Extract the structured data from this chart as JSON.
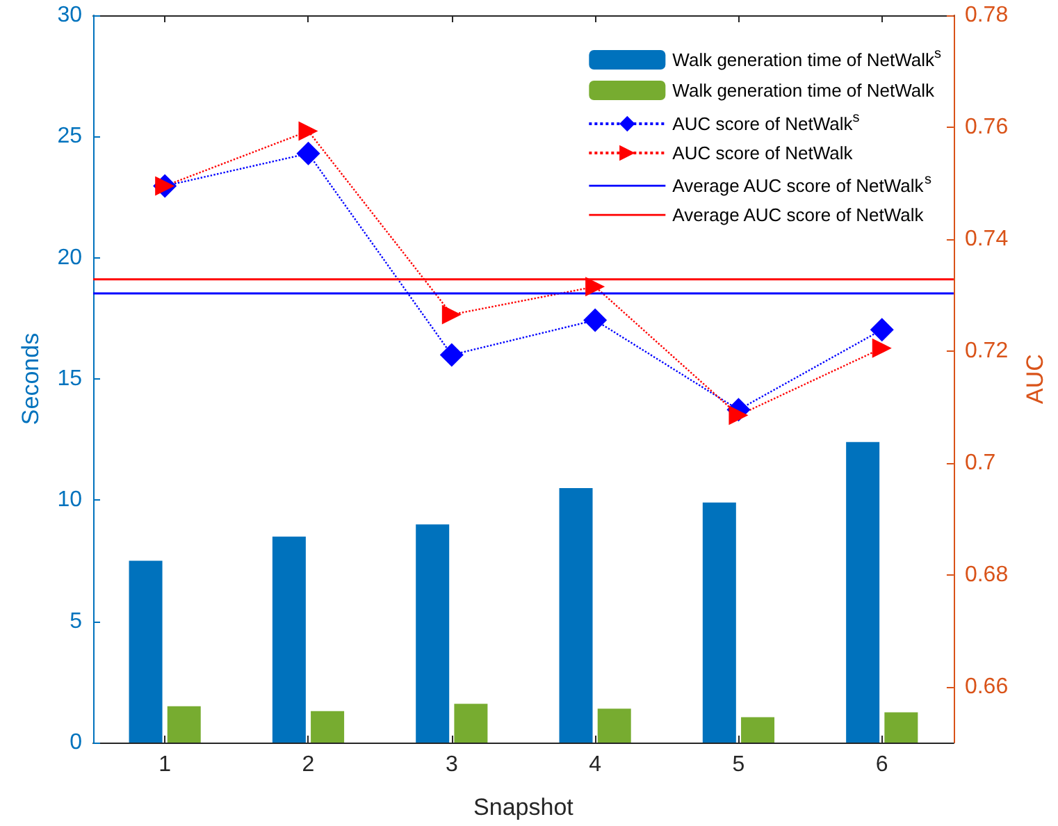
{
  "chart_data": {
    "type": "bar",
    "xlabel": "Snapshot",
    "ylabel": "Seconds",
    "y2label": "AUC",
    "categories": [
      "1",
      "2",
      "3",
      "4",
      "5",
      "6"
    ],
    "series": [
      {
        "name": "Walk generation time of NetWalk$^{s}$",
        "color": "#0072bd",
        "values": [
          7.5,
          8.5,
          9.0,
          10.5,
          9.9,
          12.4
        ]
      },
      {
        "name": "Walk generation time of NetWalk",
        "color": "#77ac30",
        "values": [
          1.5,
          1.3,
          1.6,
          1.4,
          1.05,
          1.25
        ]
      },
      {
        "name": "AUC score of NetWalk$^{s}$",
        "type": "line",
        "axis": "y2",
        "color": "#0000ff",
        "marker": "diamond",
        "line_style": "dotted",
        "values": [
          0.7495,
          0.7553,
          0.7193,
          0.7255,
          0.7095,
          0.7238
        ]
      },
      {
        "name": "AUC score of NetWalk",
        "type": "line",
        "axis": "y2",
        "color": "#ff0000",
        "marker": "triangle",
        "line_style": "dotted",
        "values": [
          0.7495,
          0.7593,
          0.7265,
          0.7315,
          0.7085,
          0.7205
        ]
      }
    ],
    "ref_lines": [
      {
        "axis": "y2",
        "value": 0.7303,
        "label": "Average AUC score of NetWalk$^{s}$",
        "color": "#0000ff",
        "line_style": "solid"
      },
      {
        "axis": "y2",
        "value": 0.7328,
        "label": "Average AUC score of NetWalk",
        "color": "#ff0000",
        "line_style": "solid"
      }
    ],
    "ylim": [
      0,
      30
    ],
    "yticks": [
      0,
      5,
      10,
      15,
      20,
      25,
      30
    ],
    "y2lim": [
      0.65,
      0.78
    ],
    "y2ticks": [
      0.66,
      0.68,
      0.7,
      0.72,
      0.74,
      0.76,
      0.78
    ],
    "grid": false,
    "legend": "top right"
  }
}
